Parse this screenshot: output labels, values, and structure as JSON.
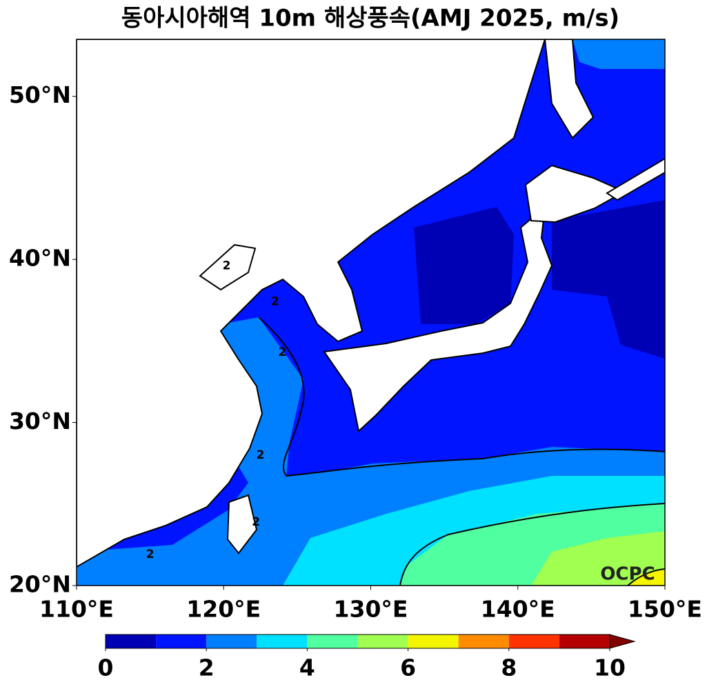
{
  "title": "동아시아해역 10m 해상풍속(AMJ 2025, m/s)",
  "map": {
    "xlim": [
      110,
      150
    ],
    "ylim": [
      20,
      53.5
    ],
    "xticks": [
      {
        "value": 110,
        "label": "110°E"
      },
      {
        "value": 120,
        "label": "120°E"
      },
      {
        "value": 130,
        "label": "130°E"
      },
      {
        "value": 140,
        "label": "140°E"
      },
      {
        "value": 150,
        "label": "150°E"
      }
    ],
    "yticks": [
      {
        "value": 20,
        "label": "20°N"
      },
      {
        "value": 30,
        "label": "30°N"
      },
      {
        "value": 40,
        "label": "40°N"
      },
      {
        "value": 50,
        "label": "50°N"
      }
    ],
    "contour_labels": [
      {
        "label": "2",
        "lon": 124.0,
        "lat": 34.3
      },
      {
        "label": "2",
        "lon": 122.5,
        "lat": 28.0
      },
      {
        "label": "2",
        "lon": 115.0,
        "lat": 21.9
      },
      {
        "label": "2",
        "lon": 122.2,
        "lat": 23.9
      },
      {
        "label": "2",
        "lon": 123.5,
        "lat": 37.4
      },
      {
        "label": "2",
        "lon": 120.2,
        "lat": 39.6
      }
    ],
    "watermark": "OCPC"
  },
  "colorbar": {
    "levels": [
      0,
      1,
      2,
      3,
      4,
      5,
      6,
      7,
      8,
      9,
      10
    ],
    "colors": [
      "#0000b4",
      "#0014ff",
      "#0080ff",
      "#00e1ff",
      "#50ffa0",
      "#a0ff50",
      "#f5f500",
      "#ff8c00",
      "#ff3200",
      "#b40000"
    ],
    "extend_color": "#800000",
    "ticks": [
      0,
      2,
      4,
      6,
      8,
      10
    ]
  }
}
